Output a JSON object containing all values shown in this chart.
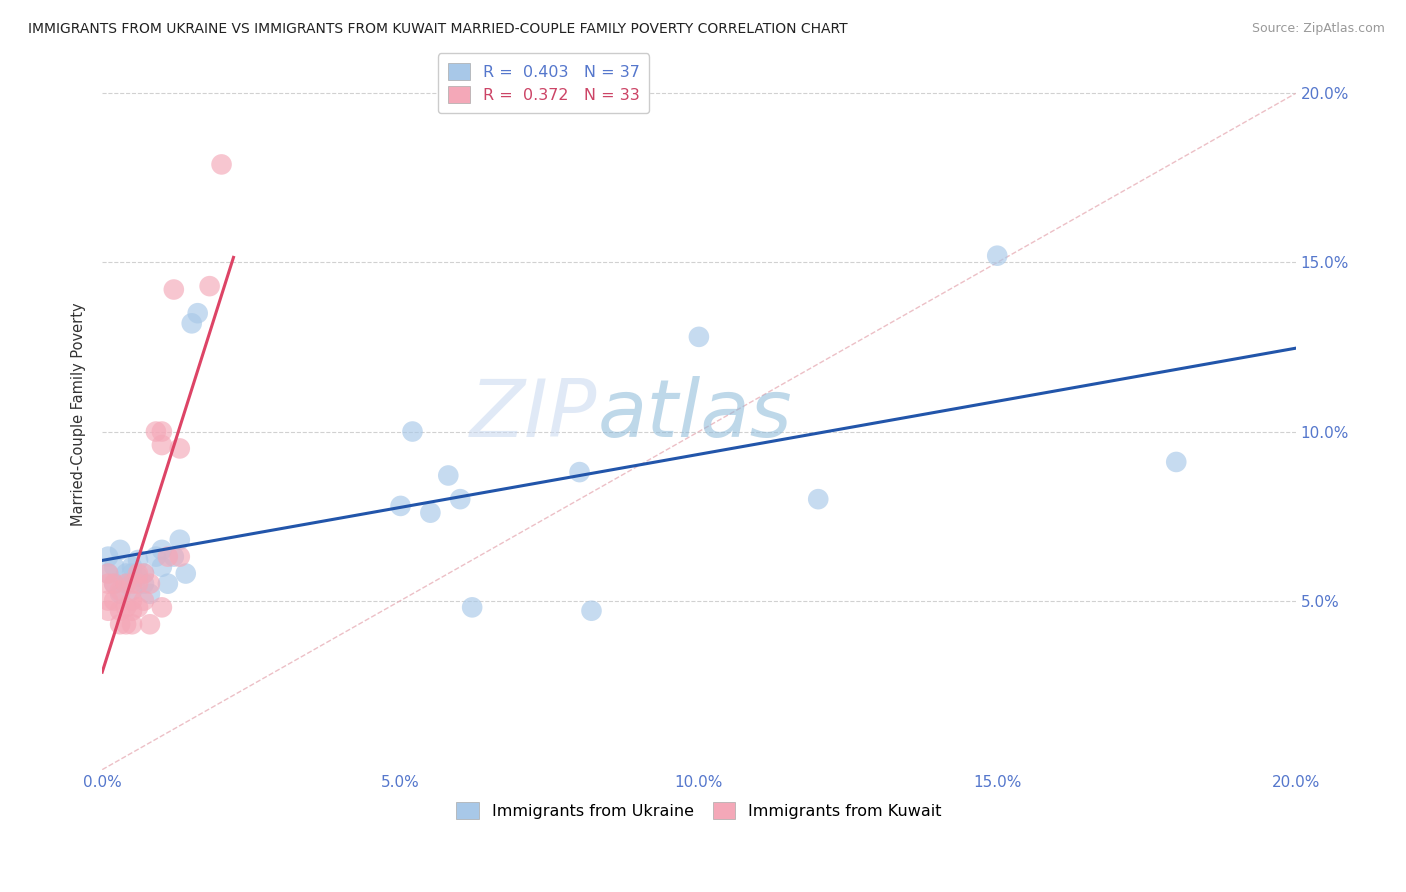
{
  "title": "IMMIGRANTS FROM UKRAINE VS IMMIGRANTS FROM KUWAIT MARRIED-COUPLE FAMILY POVERTY CORRELATION CHART",
  "source": "Source: ZipAtlas.com",
  "ylabel": "Married-Couple Family Poverty",
  "xlim": [
    0.0,
    0.2
  ],
  "ylim": [
    0.0,
    0.21
  ],
  "xtick_vals": [
    0.0,
    0.05,
    0.1,
    0.15,
    0.2
  ],
  "xtick_labels": [
    "0.0%",
    "5.0%",
    "10.0%",
    "15.0%",
    "20.0%"
  ],
  "ytick_vals": [
    0.05,
    0.1,
    0.15,
    0.2
  ],
  "ytick_labels": [
    "5.0%",
    "10.0%",
    "15.0%",
    "20.0%"
  ],
  "ukraine_color": "#a8c8e8",
  "kuwait_color": "#f4a8b8",
  "ukraine_line_color": "#2255aa",
  "kuwait_line_color": "#dd4466",
  "diagonal_color": "#e8b0b8",
  "ukraine_R": 0.403,
  "ukraine_N": 37,
  "kuwait_R": 0.372,
  "kuwait_N": 33,
  "ukraine_scatter_x": [
    0.001,
    0.001,
    0.002,
    0.002,
    0.003,
    0.003,
    0.004,
    0.004,
    0.005,
    0.005,
    0.005,
    0.006,
    0.006,
    0.007,
    0.007,
    0.008,
    0.009,
    0.01,
    0.01,
    0.011,
    0.012,
    0.013,
    0.014,
    0.015,
    0.016,
    0.05,
    0.052,
    0.055,
    0.058,
    0.06,
    0.062,
    0.08,
    0.082,
    0.1,
    0.12,
    0.15,
    0.18
  ],
  "ukraine_scatter_y": [
    0.058,
    0.063,
    0.055,
    0.06,
    0.052,
    0.065,
    0.058,
    0.055,
    0.06,
    0.053,
    0.058,
    0.062,
    0.057,
    0.058,
    0.055,
    0.052,
    0.063,
    0.065,
    0.06,
    0.055,
    0.063,
    0.068,
    0.058,
    0.132,
    0.135,
    0.078,
    0.1,
    0.076,
    0.087,
    0.08,
    0.048,
    0.088,
    0.047,
    0.128,
    0.08,
    0.152,
    0.091
  ],
  "kuwait_scatter_x": [
    0.001,
    0.001,
    0.001,
    0.001,
    0.002,
    0.002,
    0.003,
    0.003,
    0.003,
    0.004,
    0.004,
    0.004,
    0.005,
    0.005,
    0.005,
    0.005,
    0.006,
    0.006,
    0.006,
    0.007,
    0.007,
    0.008,
    0.008,
    0.009,
    0.01,
    0.01,
    0.01,
    0.011,
    0.012,
    0.013,
    0.013,
    0.018,
    0.02
  ],
  "kuwait_scatter_y": [
    0.05,
    0.055,
    0.047,
    0.058,
    0.055,
    0.05,
    0.053,
    0.047,
    0.043,
    0.055,
    0.048,
    0.043,
    0.05,
    0.055,
    0.047,
    0.043,
    0.055,
    0.058,
    0.048,
    0.058,
    0.05,
    0.055,
    0.043,
    0.1,
    0.096,
    0.048,
    0.1,
    0.063,
    0.142,
    0.063,
    0.095,
    0.143,
    0.179
  ],
  "watermark_zip": "ZIP",
  "watermark_atlas": "atlas",
  "legend_ukraine_label": "Immigrants from Ukraine",
  "legend_kuwait_label": "Immigrants from Kuwait",
  "background_color": "#ffffff",
  "grid_color": "#cccccc",
  "tick_color": "#5577cc",
  "legend_R_color_ukraine": "#5577cc",
  "legend_N_color_ukraine": "#cc4444",
  "legend_R_color_kuwait": "#cc4466",
  "legend_N_color_kuwait": "#cc4444"
}
